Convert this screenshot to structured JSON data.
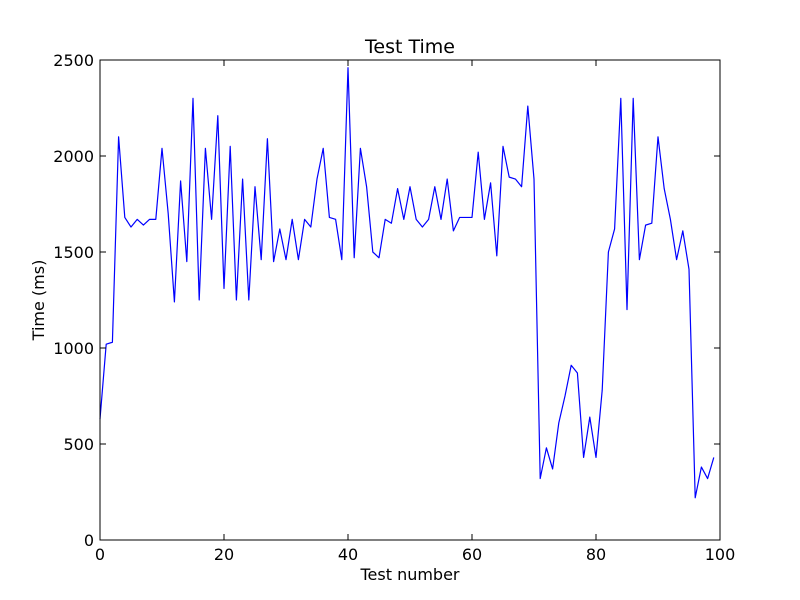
{
  "chart_data": {
    "type": "line",
    "title": "Test Time",
    "xlabel": "Test number",
    "ylabel": "Time (ms)",
    "xlim": [
      0,
      100
    ],
    "ylim": [
      0,
      2500
    ],
    "xticks": [
      "0",
      "20",
      "40",
      "60",
      "80",
      "100"
    ],
    "yticks": [
      "0",
      "500",
      "1000",
      "1500",
      "2000",
      "2500"
    ],
    "grid": false,
    "line_color": "#0000ff",
    "x": [
      0,
      1,
      2,
      3,
      4,
      5,
      6,
      7,
      8,
      9,
      10,
      11,
      12,
      13,
      14,
      15,
      16,
      17,
      18,
      19,
      20,
      21,
      22,
      23,
      24,
      25,
      26,
      27,
      28,
      29,
      30,
      31,
      32,
      33,
      34,
      35,
      36,
      37,
      38,
      39,
      40,
      41,
      42,
      43,
      44,
      45,
      46,
      47,
      48,
      49,
      50,
      51,
      52,
      53,
      54,
      55,
      56,
      57,
      58,
      59,
      60,
      61,
      62,
      63,
      64,
      65,
      66,
      67,
      68,
      69,
      70,
      71,
      72,
      73,
      74,
      75,
      76,
      77,
      78,
      79,
      80,
      81,
      82,
      83,
      84,
      85,
      86,
      87,
      88,
      89,
      90,
      91,
      92,
      93,
      94,
      95,
      96,
      97,
      98,
      99
    ],
    "series": [
      {
        "values": [
          630,
          1020,
          1030,
          2100,
          1680,
          1630,
          1670,
          1640,
          1670,
          1670,
          2040,
          1700,
          1240,
          1870,
          1450,
          2300,
          1250,
          2040,
          1670,
          2210,
          1310,
          2050,
          1250,
          1880,
          1250,
          1840,
          1460,
          2090,
          1450,
          1620,
          1460,
          1670,
          1460,
          1670,
          1630,
          1880,
          2040,
          1680,
          1670,
          1460,
          2460,
          1470,
          2040,
          1840,
          1500,
          1470,
          1670,
          1650,
          1830,
          1670,
          1840,
          1670,
          1630,
          1670,
          1840,
          1670,
          1880,
          1610,
          1680,
          1680,
          1680,
          2020,
          1670,
          1860,
          1480,
          2050,
          1890,
          1880,
          1840,
          2260,
          1880,
          320,
          480,
          370,
          610,
          750,
          910,
          870,
          430,
          640,
          430,
          780,
          1500,
          1620,
          2300,
          1200,
          2300,
          1460,
          1640,
          1650,
          2100,
          1830,
          1670,
          1460,
          1610,
          1410,
          220,
          380,
          320,
          430
        ]
      }
    ]
  }
}
